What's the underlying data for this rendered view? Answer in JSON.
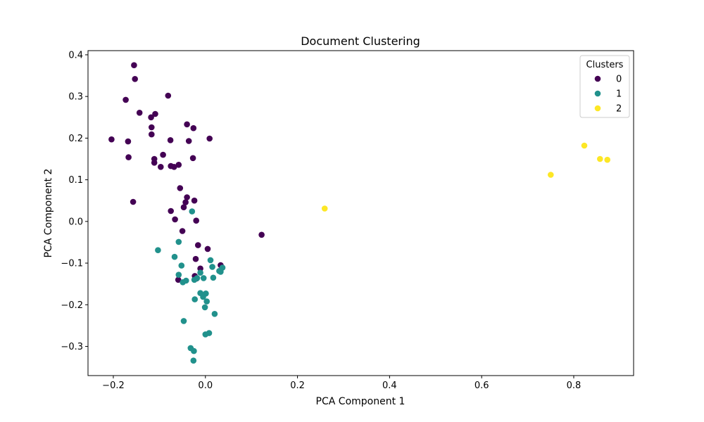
{
  "chart_data": {
    "type": "scatter",
    "title": "Document Clustering",
    "xlabel": "PCA Component 1",
    "ylabel": "PCA Component 2",
    "xlim": [
      -0.255,
      0.93
    ],
    "ylim": [
      -0.37,
      0.41
    ],
    "xticks": [
      -0.2,
      0.0,
      0.2,
      0.4,
      0.6,
      0.8
    ],
    "xtick_labels": [
      "−0.2",
      "0.0",
      "0.2",
      "0.4",
      "0.6",
      "0.8"
    ],
    "yticks": [
      -0.3,
      -0.2,
      -0.1,
      0.0,
      0.1,
      0.2,
      0.3,
      0.4
    ],
    "ytick_labels": [
      "−0.3",
      "−0.2",
      "−0.1",
      "0.0",
      "0.1",
      "0.2",
      "0.3",
      "0.4"
    ],
    "grid": false,
    "legend": {
      "title": "Clusters",
      "placement": "top-right"
    },
    "series": [
      {
        "name": "0",
        "color": "#440154",
        "points": [
          [
            -0.155,
            0.375
          ],
          [
            -0.153,
            0.342
          ],
          [
            -0.173,
            0.292
          ],
          [
            -0.081,
            0.302
          ],
          [
            -0.143,
            0.261
          ],
          [
            -0.109,
            0.258
          ],
          [
            -0.118,
            0.25
          ],
          [
            -0.117,
            0.226
          ],
          [
            -0.117,
            0.209
          ],
          [
            -0.204,
            0.197
          ],
          [
            -0.168,
            0.192
          ],
          [
            -0.076,
            0.195
          ],
          [
            -0.04,
            0.233
          ],
          [
            -0.026,
            0.224
          ],
          [
            -0.036,
            0.193
          ],
          [
            0.009,
            0.199
          ],
          [
            -0.167,
            0.154
          ],
          [
            -0.111,
            0.15
          ],
          [
            -0.111,
            0.141
          ],
          [
            -0.092,
            0.16
          ],
          [
            -0.097,
            0.131
          ],
          [
            -0.075,
            0.133
          ],
          [
            -0.068,
            0.131
          ],
          [
            -0.058,
            0.136
          ],
          [
            -0.027,
            0.152
          ],
          [
            -0.157,
            0.047
          ],
          [
            -0.055,
            0.08
          ],
          [
            -0.04,
            0.058
          ],
          [
            -0.043,
            0.046
          ],
          [
            -0.024,
            0.05
          ],
          [
            -0.047,
            0.034
          ],
          [
            -0.075,
            0.025
          ],
          [
            -0.066,
            0.005
          ],
          [
            -0.02,
            0.002
          ],
          [
            -0.05,
            -0.023
          ],
          [
            0.122,
            -0.032
          ],
          [
            -0.016,
            -0.057
          ],
          [
            0.005,
            -0.066
          ],
          [
            -0.021,
            -0.09
          ],
          [
            -0.011,
            -0.113
          ],
          [
            0.033,
            -0.105
          ],
          [
            -0.059,
            -0.14
          ],
          [
            -0.023,
            -0.131
          ],
          [
            -0.019,
            -0.137
          ]
        ]
      },
      {
        "name": "1",
        "color": "#21918c",
        "points": [
          [
            -0.029,
            0.024
          ],
          [
            -0.058,
            -0.049
          ],
          [
            -0.103,
            -0.069
          ],
          [
            -0.067,
            -0.085
          ],
          [
            -0.052,
            -0.106
          ],
          [
            0.011,
            -0.093
          ],
          [
            0.015,
            -0.109
          ],
          [
            0.037,
            -0.111
          ],
          [
            0.033,
            -0.121
          ],
          [
            0.03,
            -0.119
          ],
          [
            -0.011,
            -0.123
          ],
          [
            -0.058,
            -0.128
          ],
          [
            -0.018,
            -0.136
          ],
          [
            -0.004,
            -0.136
          ],
          [
            0.017,
            -0.135
          ],
          [
            -0.024,
            -0.14
          ],
          [
            -0.042,
            -0.142
          ],
          [
            -0.049,
            -0.146
          ],
          [
            -0.011,
            -0.172
          ],
          [
            0.001,
            -0.173
          ],
          [
            -0.005,
            -0.181
          ],
          [
            -0.023,
            -0.187
          ],
          [
            0.003,
            -0.192
          ],
          [
            -0.001,
            -0.206
          ],
          [
            0.02,
            -0.222
          ],
          [
            -0.047,
            -0.239
          ],
          [
            0.008,
            -0.268
          ],
          [
            0.0,
            -0.271
          ],
          [
            -0.032,
            -0.304
          ],
          [
            -0.025,
            -0.311
          ],
          [
            -0.026,
            -0.334
          ]
        ]
      },
      {
        "name": "2",
        "color": "#fde725",
        "points": [
          [
            0.259,
            0.031
          ],
          [
            0.75,
            0.112
          ],
          [
            0.823,
            0.182
          ],
          [
            0.857,
            0.15
          ],
          [
            0.873,
            0.148
          ]
        ]
      }
    ]
  }
}
